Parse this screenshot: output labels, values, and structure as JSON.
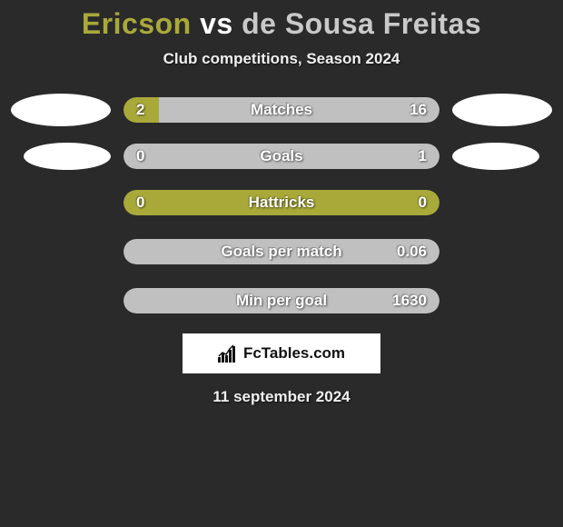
{
  "title": {
    "player1": "Ericson",
    "vs": "vs",
    "player2": "de Sousa Freitas",
    "player1_color": "#a9a93a",
    "vs_color": "#ffffff",
    "player2_color": "#c9c9c9"
  },
  "subtitle": "Club competitions, Season 2024",
  "colors": {
    "player1_bar": "#a9a93a",
    "player2_bar": "#c0c0c0",
    "background": "#2a2a2a",
    "oval": "#ffffff",
    "text": "#ffffff"
  },
  "stats": [
    {
      "label": "Matches",
      "left_value": "2",
      "right_value": "16",
      "left_pct": 11.1,
      "right_pct": 88.9,
      "show_left_oval": true,
      "show_right_oval": true,
      "oval_small": false
    },
    {
      "label": "Goals",
      "left_value": "0",
      "right_value": "1",
      "left_pct": 0,
      "right_pct": 100,
      "show_left_oval": true,
      "show_right_oval": true,
      "oval_small": true
    },
    {
      "label": "Hattricks",
      "left_value": "0",
      "right_value": "0",
      "left_pct": 100,
      "right_pct": 0,
      "show_left_oval": false,
      "show_right_oval": false,
      "oval_small": false
    },
    {
      "label": "Goals per match",
      "left_value": "",
      "right_value": "0.06",
      "left_pct": 0,
      "right_pct": 100,
      "show_left_oval": false,
      "show_right_oval": false,
      "oval_small": false
    },
    {
      "label": "Min per goal",
      "left_value": "",
      "right_value": "1630",
      "left_pct": 0,
      "right_pct": 100,
      "show_left_oval": false,
      "show_right_oval": false,
      "oval_small": false
    }
  ],
  "logo": {
    "text": "FcTables.com",
    "icon": "bar-chart-icon"
  },
  "date": "11 september 2024"
}
